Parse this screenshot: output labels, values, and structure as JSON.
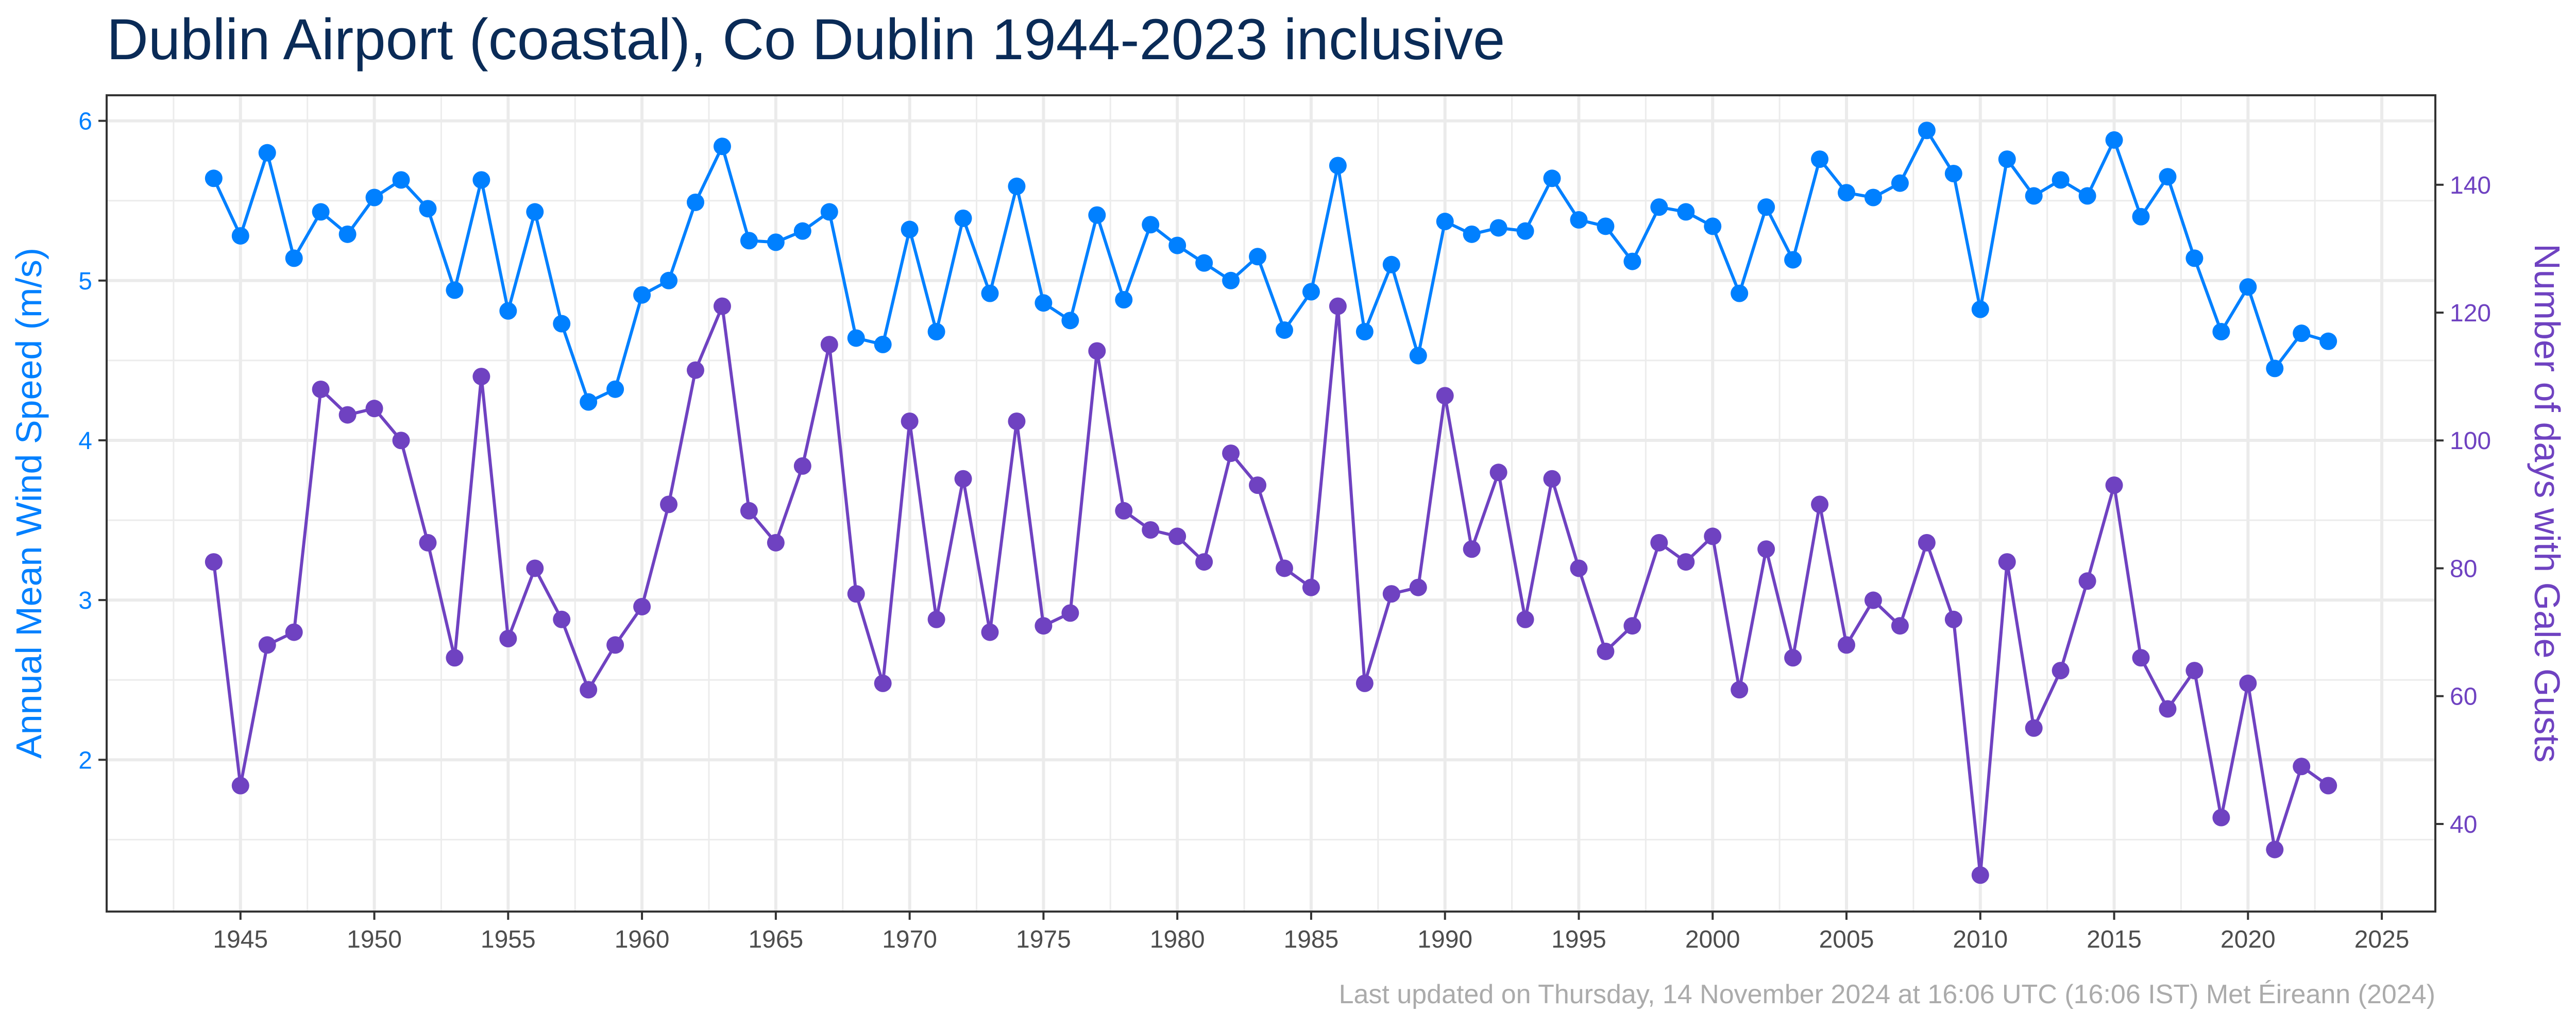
{
  "chart_data": {
    "type": "line",
    "title": "Dublin Airport (coastal), Co Dublin 1944-2023 inclusive",
    "xlabel": "",
    "ylabel": "Annual Mean Wind Speed (m/s)",
    "y2label": "Number of days with Gale Gusts",
    "xlim": [
      1940,
      2027
    ],
    "ylim": [
      1.05,
      6.16
    ],
    "y2lim": [
      26.3,
      154
    ],
    "x_ticks": [
      1945,
      1950,
      1955,
      1960,
      1965,
      1970,
      1975,
      1980,
      1985,
      1990,
      1995,
      2000,
      2005,
      2010,
      2015,
      2020,
      2025
    ],
    "y_ticks": [
      2,
      3,
      4,
      5,
      6
    ],
    "y2_ticks": [
      40,
      60,
      80,
      100,
      120,
      140
    ],
    "grid": true,
    "legend": "none",
    "colors": {
      "wind_speed": "#0080ff",
      "gale_days": "#6f42c1",
      "title": "#0a2b57"
    },
    "x": [
      1944,
      1945,
      1946,
      1947,
      1948,
      1949,
      1950,
      1951,
      1952,
      1953,
      1954,
      1955,
      1956,
      1957,
      1958,
      1959,
      1960,
      1961,
      1962,
      1963,
      1964,
      1965,
      1966,
      1967,
      1968,
      1969,
      1970,
      1971,
      1972,
      1973,
      1974,
      1975,
      1976,
      1977,
      1978,
      1979,
      1980,
      1981,
      1982,
      1983,
      1984,
      1985,
      1986,
      1987,
      1988,
      1989,
      1990,
      1991,
      1992,
      1993,
      1994,
      1995,
      1996,
      1997,
      1998,
      1999,
      2000,
      2001,
      2002,
      2003,
      2004,
      2005,
      2006,
      2007,
      2008,
      2009,
      2010,
      2011,
      2012,
      2013,
      2014,
      2015,
      2016,
      2017,
      2018,
      2019,
      2020,
      2021,
      2022,
      2023
    ],
    "series": [
      {
        "axis": "left",
        "values": [
          5.64,
          5.28,
          5.8,
          5.14,
          5.43,
          5.29,
          5.52,
          5.63,
          5.45,
          4.94,
          5.63,
          4.81,
          5.43,
          4.73,
          4.24,
          4.32,
          4.91,
          5.0,
          5.49,
          5.84,
          5.25,
          5.24,
          5.31,
          5.43,
          4.64,
          4.6,
          5.32,
          4.68,
          5.39,
          4.92,
          5.59,
          4.86,
          4.75,
          5.41,
          4.88,
          5.35,
          5.22,
          5.11,
          5.0,
          5.15,
          4.69,
          4.93,
          5.72,
          4.68,
          5.1,
          4.53,
          5.37,
          5.29,
          5.33,
          5.31,
          5.64,
          5.38,
          5.34,
          5.12,
          5.46,
          5.43,
          5.34,
          4.92,
          5.46,
          5.13,
          5.76,
          5.55,
          5.52,
          5.61,
          5.94,
          5.67,
          4.82,
          5.76,
          5.53,
          5.63,
          5.53,
          5.88,
          5.4,
          5.65,
          5.14,
          4.68,
          4.96,
          4.45,
          4.67,
          4.62
        ]
      },
      {
        "axis": "right",
        "values": [
          81,
          46,
          68,
          70,
          108,
          104,
          105,
          100,
          84,
          66,
          110,
          69,
          80,
          72,
          61,
          68,
          74,
          90,
          111,
          121,
          89,
          84,
          96,
          115,
          76,
          62,
          103,
          72,
          94,
          70,
          103,
          71,
          73,
          114,
          89,
          86,
          85,
          81,
          98,
          93,
          80,
          77,
          121,
          62,
          76,
          77,
          107,
          83,
          95,
          72,
          94,
          80,
          67,
          71,
          84,
          81,
          85,
          61,
          83,
          66,
          90,
          68,
          75,
          71,
          84,
          72,
          32,
          81,
          55,
          64,
          78,
          93,
          66,
          58,
          64,
          41,
          62,
          36,
          49,
          46
        ]
      }
    ]
  },
  "footer": "Last updated on Thursday, 14 November 2024 at 16:06 UTC (16:06 IST) Met Éireann (2024)"
}
